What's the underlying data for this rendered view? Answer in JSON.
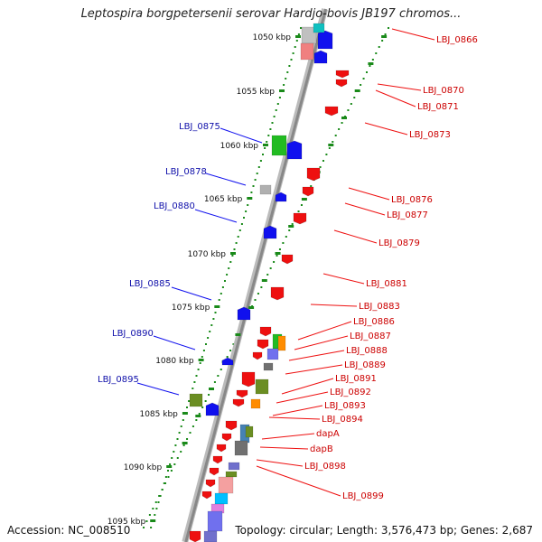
{
  "title": "Leptospira borgpetersenii serovar Hardjo-bovis JB197 chromos...",
  "footer": {
    "accession": "Accession: NC_008510",
    "summary": "Topology: circular; Length: 3,576,473 bp; Genes: 2,687"
  },
  "colors": {
    "forward_gene": "#1010ee",
    "reverse_gene": "#ee1010",
    "forward_label": "#1010aa",
    "reverse_label": "#cc0000",
    "tick": "#1a8a1a",
    "backbone": "#888888"
  },
  "scale_labels": [
    "1050 kbp",
    "1055 kbp",
    "1060 kbp",
    "1065 kbp",
    "1070 kbp",
    "1075 kbp",
    "1080 kbp",
    "1085 kbp",
    "1090 kbp",
    "1095 kbp"
  ],
  "forward_labels": [
    "LBJ_0875",
    "LBJ_0878",
    "LBJ_0880",
    "LBJ_0885",
    "LBJ_0890",
    "LBJ_0895"
  ],
  "reverse_labels": [
    "LBJ_0866",
    "LBJ_0870",
    "LBJ_0871",
    "LBJ_0873",
    "LBJ_0876",
    "LBJ_0877",
    "LBJ_0879",
    "LBJ_0881",
    "LBJ_0883",
    "LBJ_0886",
    "LBJ_0887",
    "LBJ_0888",
    "LBJ_0889",
    "LBJ_0891",
    "LBJ_0892",
    "LBJ_0893",
    "LBJ_0894",
    "dapA",
    "dapB",
    "LBJ_0898",
    "LBJ_0899"
  ]
}
